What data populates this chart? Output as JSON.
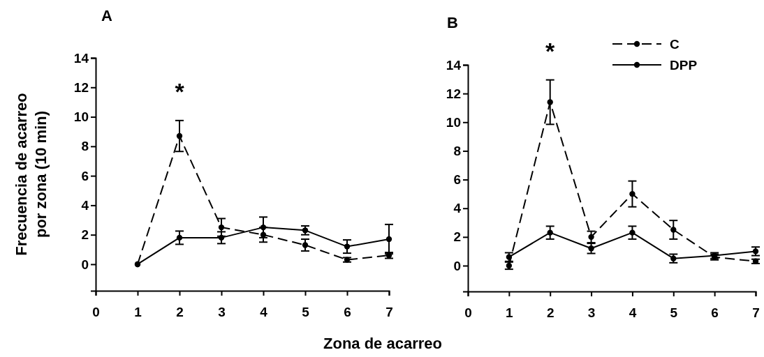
{
  "chart_data": [
    {
      "type": "line",
      "title": "A",
      "xlabel": "Zona de acarreo",
      "ylabel": "Frecuencia de acarreo\npor zona (10 min)",
      "x": [
        1,
        2,
        3,
        4,
        5,
        6,
        7
      ],
      "xlim": [
        0,
        7
      ],
      "xticks": [
        0,
        1,
        2,
        3,
        4,
        5,
        6,
        7
      ],
      "ylim": [
        -1.8,
        14
      ],
      "yticks": [
        0,
        2,
        4,
        6,
        8,
        10,
        12,
        14
      ],
      "marker": "circle",
      "legend": false,
      "grid": false,
      "series": [
        {
          "color": "#000000",
          "line_style": "dashed",
          "values": [
            0,
            8.7,
            2.5,
            2.0,
            1.3,
            0.3,
            0.6
          ],
          "errors": [
            null,
            1.05,
            0.6,
            0.5,
            0.4,
            0.15,
            0.2
          ]
        },
        {
          "color": "#000000",
          "line_style": "solid",
          "values": [
            0,
            1.8,
            1.8,
            2.5,
            2.3,
            1.2,
            1.7
          ],
          "errors": [
            null,
            0.45,
            0.4,
            0.7,
            0.3,
            0.45,
            1.0
          ]
        }
      ],
      "annotations": [
        "*"
      ]
    },
    {
      "type": "line",
      "title": "B",
      "x": [
        1,
        2,
        3,
        4,
        5,
        6,
        7
      ],
      "xlim": [
        0,
        7
      ],
      "xticks": [
        0,
        1,
        2,
        3,
        4,
        5,
        6,
        7
      ],
      "ylim": [
        -1.8,
        14
      ],
      "yticks": [
        0,
        2,
        4,
        6,
        8,
        10,
        12,
        14
      ],
      "marker": "circle",
      "legend": "top right",
      "grid": false,
      "series": [
        {
          "name": "C",
          "color": "#000000",
          "line_style": "dashed",
          "values": [
            0,
            11.4,
            2.0,
            5.0,
            2.5,
            0.6,
            0.3
          ],
          "errors": [
            0.25,
            1.55,
            0.4,
            0.9,
            0.65,
            0.2,
            0.15
          ]
        },
        {
          "name": "DPP",
          "color": "#000000",
          "line_style": "solid",
          "values": [
            0.6,
            2.3,
            1.2,
            2.3,
            0.5,
            0.7,
            1.0
          ],
          "errors": [
            0.3,
            0.45,
            0.35,
            0.45,
            0.3,
            0.2,
            0.3
          ]
        }
      ],
      "annotations": [
        "*"
      ]
    }
  ]
}
